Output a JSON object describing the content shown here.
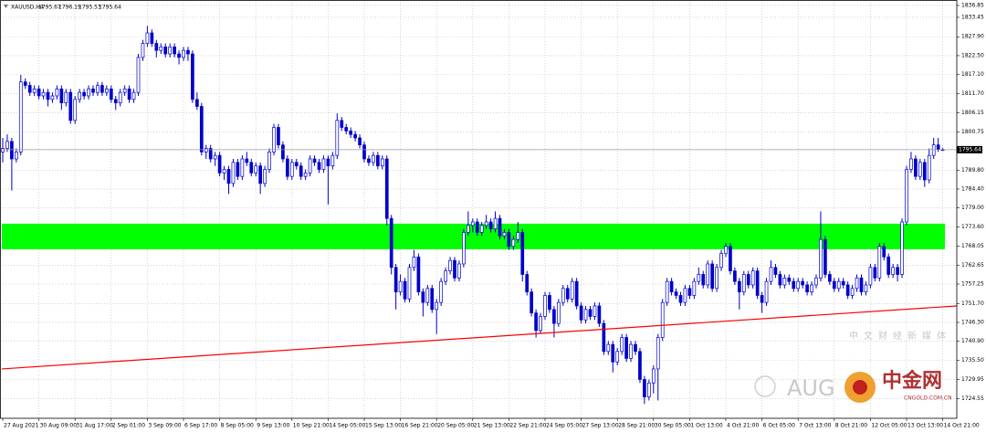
{
  "chart_data": {
    "type": "candlestick",
    "title": "XAUUSD,H4",
    "ylim": [
      1718.9,
      1838.4
    ],
    "yticks": [
      1836.85,
      1833.45,
      {
        "value": 1827.9,
        "label": "1827.90"
      },
      {
        "value": 1822.5,
        "label": "1822.50"
      },
      {
        "value": 1817.1,
        "label": "1817.10"
      },
      {
        "value": 1811.7,
        "label": "1811.70"
      },
      1806.15,
      1800.75,
      {
        "value": 1789.8,
        "label": "1789.80"
      },
      {
        "value": 1784.4,
        "label": "1784.40"
      },
      {
        "value": 1779,
        "label": "1779.00"
      },
      {
        "value": 1773.6,
        "label": "1773.60"
      },
      1768.05,
      1762.65,
      1757.25,
      {
        "value": 1751.7,
        "label": "1751.70"
      },
      {
        "value": 1746.3,
        "label": "1746.30"
      },
      {
        "value": 1740.9,
        "label": "1740.90"
      },
      {
        "value": 1735.5,
        "label": "1735.50"
      },
      1729.95,
      1724.55
    ],
    "grid": true,
    "bull_color": "#ffffff",
    "bear_color": "#0000c8",
    "outline_color": "#0000c8",
    "categories": [
      "27 Aug 2021",
      null,
      null,
      null,
      null,
      null,
      null,
      null,
      "30 Aug 09:00",
      null,
      null,
      null,
      null,
      null,
      null,
      null,
      "31 Aug 17:00",
      null,
      null,
      null,
      null,
      null,
      null,
      null,
      "2 Sep 01:00",
      null,
      null,
      null,
      null,
      null,
      null,
      null,
      "3 Sep 09:00",
      null,
      null,
      null,
      null,
      null,
      null,
      null,
      "6 Sep 17:00",
      null,
      null,
      null,
      null,
      null,
      null,
      null,
      "8 Sep 05:00",
      null,
      null,
      null,
      null,
      null,
      null,
      null,
      "9 Sep 13:00",
      null,
      null,
      null,
      null,
      null,
      null,
      null,
      "10 Sep 21:00",
      null,
      null,
      null,
      null,
      null,
      null,
      null,
      "14 Sep 05:00",
      null,
      null,
      null,
      null,
      null,
      null,
      null,
      "15 Sep 13:00",
      null,
      null,
      null,
      null,
      null,
      null,
      null,
      "16 Sep 21:00",
      null,
      null,
      null,
      null,
      null,
      null,
      null,
      "20 Sep 05:00",
      null,
      null,
      null,
      null,
      null,
      null,
      null,
      "21 Sep 13:00",
      null,
      null,
      null,
      null,
      null,
      null,
      null,
      "22 Sep 21:00",
      null,
      null,
      null,
      null,
      null,
      null,
      null,
      "24 Sep 05:00",
      null,
      null,
      null,
      null,
      null,
      null,
      null,
      "27 Sep 13:00",
      null,
      null,
      null,
      null,
      null,
      null,
      null,
      "28 Sep 21:00",
      null,
      null,
      null,
      null,
      null,
      null,
      null,
      "30 Sep 05:00",
      null,
      null,
      null,
      null,
      null,
      null,
      null,
      "1 Oct 13:00",
      null,
      null,
      null,
      null,
      null,
      null,
      null,
      "4 Oct 21:00",
      null,
      null,
      null,
      null,
      null,
      null,
      null,
      "6 Oct 05:00",
      null,
      null,
      null,
      null,
      null,
      null,
      null,
      "7 Oct 13:00",
      null,
      null,
      null,
      null,
      null,
      null,
      null,
      "8 Oct 21:00",
      null,
      null,
      null,
      null,
      null,
      null,
      null,
      "12 Oct 05:00",
      null,
      null,
      null,
      null,
      null,
      null,
      null,
      "13 Oct 13:00",
      null,
      null,
      null,
      null,
      null,
      null,
      null,
      "14 Oct 21:00"
    ],
    "ohlc": [
      [
        1795,
        1799,
        1792,
        1796
      ],
      [
        1796,
        1800,
        1795,
        1798
      ],
      [
        1798,
        1799,
        1784,
        1793
      ],
      [
        1793,
        1796,
        1792,
        1795
      ],
      [
        1795,
        1817,
        1794,
        1815
      ],
      [
        1815,
        1816,
        1813,
        1814
      ],
      [
        1814,
        1815,
        1811,
        1812
      ],
      [
        1812,
        1814,
        1811,
        1813
      ],
      [
        1813,
        1814,
        1810,
        1811
      ],
      [
        1811,
        1813,
        1810,
        1812
      ],
      [
        1812,
        1813,
        1808,
        1810
      ],
      [
        1810,
        1812,
        1809,
        1811
      ],
      [
        1811,
        1814,
        1810,
        1813
      ],
      [
        1813,
        1814,
        1807,
        1809
      ],
      [
        1809,
        1813,
        1808,
        1812
      ],
      [
        1812,
        1813,
        1803,
        1804
      ],
      [
        1804,
        1811,
        1803,
        1810
      ],
      [
        1810,
        1813,
        1809,
        1812
      ],
      [
        1812,
        1813,
        1810,
        1811
      ],
      [
        1811,
        1814,
        1810,
        1813
      ],
      [
        1813,
        1814,
        1811,
        1812
      ],
      [
        1812,
        1815,
        1811,
        1814
      ],
      [
        1814,
        1815,
        1811,
        1812
      ],
      [
        1812,
        1814,
        1811,
        1813
      ],
      [
        1813,
        1814,
        1809,
        1810
      ],
      [
        1810,
        1811,
        1807,
        1809
      ],
      [
        1809,
        1813,
        1808,
        1812
      ],
      [
        1812,
        1814,
        1811,
        1813
      ],
      [
        1813,
        1814,
        1809,
        1810
      ],
      [
        1810,
        1813,
        1809,
        1812
      ],
      [
        1812,
        1823,
        1811,
        1822
      ],
      [
        1822,
        1827,
        1821,
        1826
      ],
      [
        1826,
        1831,
        1825,
        1829
      ],
      [
        1829,
        1830,
        1825,
        1826
      ],
      [
        1826,
        1827,
        1822,
        1824
      ],
      [
        1824,
        1826,
        1823,
        1825
      ],
      [
        1825,
        1826,
        1822,
        1823
      ],
      [
        1823,
        1826,
        1822,
        1825
      ],
      [
        1825,
        1826,
        1822,
        1823
      ],
      [
        1823,
        1824,
        1820,
        1822
      ],
      [
        1822,
        1825,
        1821,
        1824
      ],
      [
        1824,
        1825,
        1821,
        1823
      ],
      [
        1823,
        1824,
        1809,
        1810
      ],
      [
        1810,
        1812,
        1807,
        1808
      ],
      [
        1808,
        1809,
        1794,
        1795
      ],
      [
        1795,
        1797,
        1793,
        1796
      ],
      [
        1796,
        1797,
        1792,
        1793
      ],
      [
        1793,
        1795,
        1791,
        1794
      ],
      [
        1794,
        1795,
        1788,
        1789
      ],
      [
        1789,
        1791,
        1787,
        1790
      ],
      [
        1790,
        1791,
        1783,
        1786
      ],
      [
        1786,
        1793,
        1785,
        1792
      ],
      [
        1792,
        1793,
        1787,
        1788
      ],
      [
        1788,
        1794,
        1787,
        1793
      ],
      [
        1793,
        1795,
        1791,
        1792
      ],
      [
        1792,
        1793,
        1788,
        1789
      ],
      [
        1789,
        1792,
        1788,
        1791
      ],
      [
        1791,
        1792,
        1783,
        1786
      ],
      [
        1786,
        1791,
        1785,
        1790
      ],
      [
        1790,
        1796,
        1789,
        1795
      ],
      [
        1795,
        1803,
        1794,
        1802
      ],
      [
        1802,
        1803,
        1796,
        1797
      ],
      [
        1797,
        1798,
        1792,
        1793
      ],
      [
        1793,
        1794,
        1787,
        1788
      ],
      [
        1788,
        1793,
        1787,
        1792
      ],
      [
        1792,
        1793,
        1790,
        1791
      ],
      [
        1791,
        1792,
        1787,
        1788
      ],
      [
        1788,
        1790,
        1787,
        1789
      ],
      [
        1789,
        1794,
        1788,
        1793
      ],
      [
        1793,
        1794,
        1791,
        1792
      ],
      [
        1792,
        1793,
        1789,
        1790
      ],
      [
        1790,
        1794,
        1789,
        1793
      ],
      [
        1793,
        1794,
        1780,
        1791
      ],
      [
        1791,
        1795,
        1790,
        1794
      ],
      [
        1794,
        1806,
        1793,
        1804
      ],
      [
        1804,
        1805,
        1801,
        1802
      ],
      [
        1802,
        1803,
        1800,
        1801
      ],
      [
        1801,
        1802,
        1799,
        1800
      ],
      [
        1800,
        1801,
        1798,
        1799
      ],
      [
        1799,
        1800,
        1796,
        1797
      ],
      [
        1797,
        1798,
        1792,
        1793
      ],
      [
        1793,
        1794,
        1791,
        1792
      ],
      [
        1792,
        1795,
        1791,
        1794
      ],
      [
        1794,
        1795,
        1790,
        1791
      ],
      [
        1791,
        1794,
        1790,
        1793
      ],
      [
        1793,
        1794,
        1774,
        1776
      ],
      [
        1776,
        1777,
        1760,
        1762
      ],
      [
        1762,
        1763,
        1750,
        1755
      ],
      [
        1755,
        1760,
        1754,
        1758
      ],
      [
        1758,
        1759,
        1752,
        1753
      ],
      [
        1753,
        1763,
        1752,
        1762
      ],
      [
        1762,
        1767,
        1761,
        1765
      ],
      [
        1765,
        1766,
        1754,
        1755
      ],
      [
        1755,
        1756,
        1748,
        1752
      ],
      [
        1752,
        1757,
        1751,
        1756
      ],
      [
        1756,
        1757,
        1749,
        1750
      ],
      [
        1750,
        1753,
        1743,
        1752
      ],
      [
        1752,
        1759,
        1751,
        1758
      ],
      [
        1758,
        1762,
        1757,
        1761
      ],
      [
        1761,
        1765,
        1760,
        1764
      ],
      [
        1764,
        1765,
        1758,
        1759
      ],
      [
        1759,
        1764,
        1758,
        1763
      ],
      [
        1763,
        1773,
        1762,
        1772
      ],
      [
        1772,
        1778,
        1771,
        1774
      ],
      [
        1774,
        1776,
        1772,
        1775
      ],
      [
        1775,
        1776,
        1771,
        1772
      ],
      [
        1772,
        1775,
        1771,
        1774
      ],
      [
        1774,
        1777,
        1773,
        1775
      ],
      [
        1775,
        1776,
        1772,
        1773
      ],
      [
        1773,
        1778,
        1772,
        1776
      ],
      [
        1776,
        1777,
        1770,
        1771
      ],
      [
        1771,
        1773,
        1770,
        1772
      ],
      [
        1772,
        1773,
        1767,
        1768
      ],
      [
        1768,
        1771,
        1767,
        1770
      ],
      [
        1770,
        1775,
        1769,
        1772
      ],
      [
        1772,
        1773,
        1758,
        1760
      ],
      [
        1760,
        1761,
        1754,
        1755
      ],
      [
        1755,
        1756,
        1748,
        1749
      ],
      [
        1749,
        1750,
        1742,
        1744
      ],
      [
        1744,
        1749,
        1743,
        1748
      ],
      [
        1748,
        1755,
        1747,
        1754
      ],
      [
        1754,
        1755,
        1749,
        1750
      ],
      [
        1750,
        1751,
        1742,
        1746
      ],
      [
        1746,
        1753,
        1745,
        1752
      ],
      [
        1752,
        1757,
        1751,
        1756
      ],
      [
        1756,
        1757,
        1752,
        1753
      ],
      [
        1753,
        1759,
        1752,
        1758
      ],
      [
        1758,
        1759,
        1750,
        1751
      ],
      [
        1751,
        1752,
        1746,
        1747
      ],
      [
        1747,
        1751,
        1746,
        1750
      ],
      [
        1750,
        1751,
        1747,
        1748
      ],
      [
        1748,
        1752,
        1747,
        1751
      ],
      [
        1751,
        1752,
        1745,
        1746
      ],
      [
        1746,
        1747,
        1737,
        1738
      ],
      [
        1738,
        1741,
        1737,
        1740
      ],
      [
        1740,
        1741,
        1732,
        1735
      ],
      [
        1735,
        1739,
        1734,
        1738
      ],
      [
        1738,
        1743,
        1737,
        1742
      ],
      [
        1742,
        1743,
        1735,
        1736
      ],
      [
        1736,
        1741,
        1735,
        1740
      ],
      [
        1740,
        1741,
        1737,
        1738
      ],
      [
        1738,
        1739,
        1729,
        1730
      ],
      [
        1730,
        1731,
        1723,
        1725
      ],
      [
        1725,
        1730,
        1724,
        1729
      ],
      [
        1729,
        1734,
        1726,
        1733
      ],
      [
        1733,
        1743,
        1724,
        1742
      ],
      [
        1742,
        1753,
        1741,
        1752
      ],
      [
        1752,
        1759,
        1751,
        1758
      ],
      [
        1758,
        1759,
        1754,
        1755
      ],
      [
        1755,
        1756,
        1753,
        1754
      ],
      [
        1754,
        1755,
        1751,
        1752
      ],
      [
        1752,
        1757,
        1751,
        1756
      ],
      [
        1756,
        1757,
        1753,
        1754
      ],
      [
        1754,
        1759,
        1753,
        1758
      ],
      [
        1758,
        1762,
        1757,
        1760
      ],
      [
        1760,
        1761,
        1756,
        1757
      ],
      [
        1757,
        1764,
        1756,
        1763
      ],
      [
        1763,
        1764,
        1755,
        1756
      ],
      [
        1756,
        1763,
        1755,
        1762
      ],
      [
        1762,
        1767,
        1761,
        1766
      ],
      [
        1766,
        1769,
        1765,
        1768
      ],
      [
        1768,
        1769,
        1760,
        1761
      ],
      [
        1761,
        1762,
        1757,
        1758
      ],
      [
        1758,
        1759,
        1750,
        1755
      ],
      [
        1755,
        1761,
        1754,
        1760
      ],
      [
        1760,
        1761,
        1756,
        1757
      ],
      [
        1757,
        1762,
        1756,
        1761
      ],
      [
        1761,
        1762,
        1753,
        1754
      ],
      [
        1754,
        1755,
        1749,
        1752
      ],
      [
        1752,
        1759,
        1751,
        1758
      ],
      [
        1758,
        1764,
        1757,
        1762
      ],
      [
        1762,
        1763,
        1759,
        1760
      ],
      [
        1760,
        1761,
        1756,
        1757
      ],
      [
        1757,
        1760,
        1756,
        1759
      ],
      [
        1759,
        1760,
        1757,
        1758
      ],
      [
        1758,
        1759,
        1755,
        1756
      ],
      [
        1756,
        1759,
        1755,
        1758
      ],
      [
        1758,
        1759,
        1756,
        1757
      ],
      [
        1757,
        1758,
        1754,
        1755
      ],
      [
        1755,
        1758,
        1754,
        1757
      ],
      [
        1757,
        1760,
        1756,
        1759
      ],
      [
        1759,
        1778,
        1758,
        1770
      ],
      [
        1770,
        1771,
        1759,
        1760
      ],
      [
        1760,
        1761,
        1757,
        1758
      ],
      [
        1758,
        1759,
        1755,
        1756
      ],
      [
        1756,
        1759,
        1755,
        1758
      ],
      [
        1758,
        1759,
        1756,
        1757
      ],
      [
        1757,
        1758,
        1753,
        1754
      ],
      [
        1754,
        1757,
        1753,
        1756
      ],
      [
        1756,
        1760,
        1755,
        1759
      ],
      [
        1759,
        1760,
        1754,
        1755
      ],
      [
        1755,
        1758,
        1754,
        1757
      ],
      [
        1757,
        1763,
        1756,
        1762
      ],
      [
        1762,
        1763,
        1758,
        1759
      ],
      [
        1759,
        1769,
        1758,
        1768
      ],
      [
        1768,
        1769,
        1764,
        1765
      ],
      [
        1765,
        1766,
        1759,
        1760
      ],
      [
        1760,
        1763,
        1759,
        1762
      ],
      [
        1762,
        1763,
        1758,
        1760
      ],
      [
        1760,
        1776,
        1759,
        1775
      ],
      [
        1775,
        1791,
        1774,
        1790
      ],
      [
        1790,
        1795,
        1789,
        1793
      ],
      [
        1793,
        1794,
        1787,
        1788
      ],
      [
        1788,
        1793,
        1787,
        1792
      ],
      [
        1792,
        1793,
        1785,
        1787
      ],
      [
        1787,
        1796,
        1786,
        1794
      ],
      [
        1794,
        1799,
        1793,
        1797
      ],
      [
        1797,
        1799,
        1795,
        1795.8
      ],
      [
        1795.67,
        1796.19,
        1795.53,
        1795.64
      ]
    ],
    "zone": {
      "from": 1767.2,
      "to": 1774.5,
      "color": "#00ff00"
    },
    "trendline": {
      "start": 1733.0,
      "end": 1751.0,
      "color": "#ff0000"
    },
    "watermark": {
      "brand": "AUG",
      "name": "中金网",
      "domain": "CNGOLD.COM.CN",
      "slogan": "中文财经新媒体"
    }
  }
}
